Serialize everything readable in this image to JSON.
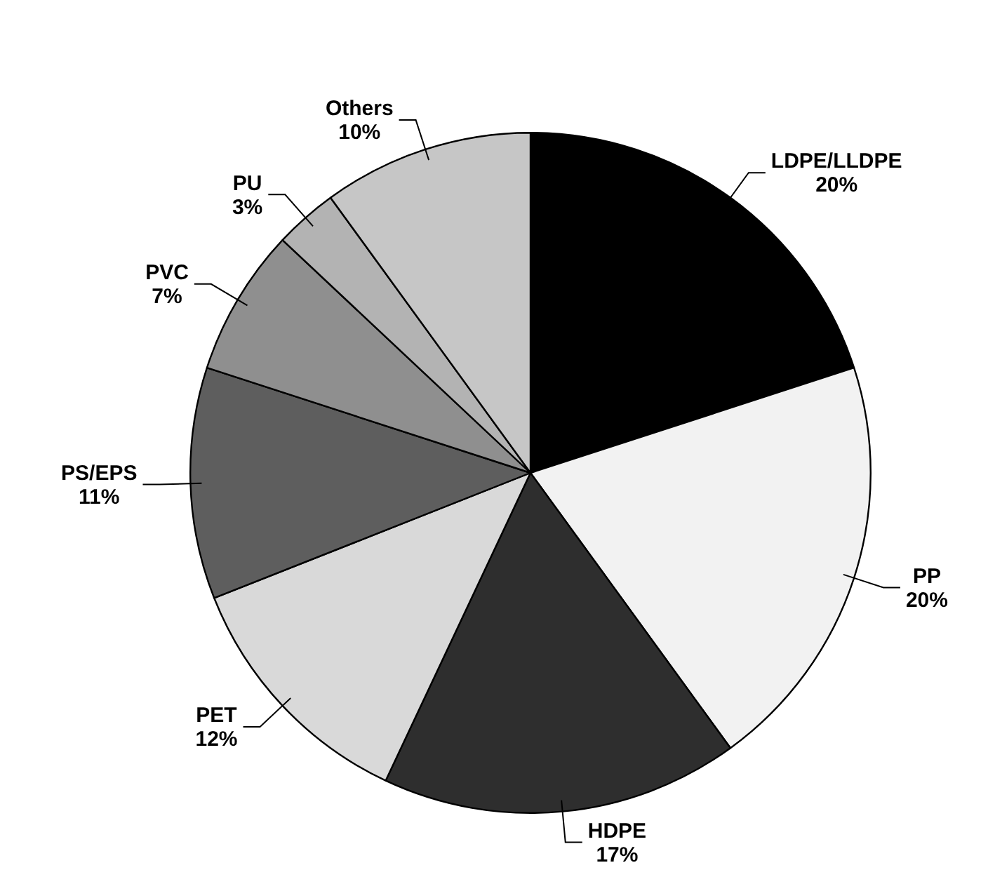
{
  "chart_data": {
    "type": "pie",
    "categories": [
      "LDPE/LLDPE",
      "PP",
      "HDPE",
      "PET",
      "PS/EPS",
      "PVC",
      "PU",
      "Others"
    ],
    "values": [
      20,
      20,
      17,
      12,
      11,
      7,
      3,
      10
    ],
    "value_labels": [
      "20%",
      "20%",
      "17%",
      "12%",
      "11%",
      "7%",
      "3%",
      "10%"
    ],
    "colors": [
      "#000000",
      "#f2f2f2",
      "#2e2e2e",
      "#d9d9d9",
      "#5e5e5e",
      "#8f8f8f",
      "#b3b3b3",
      "#c6c6c6"
    ],
    "legend": false
  }
}
